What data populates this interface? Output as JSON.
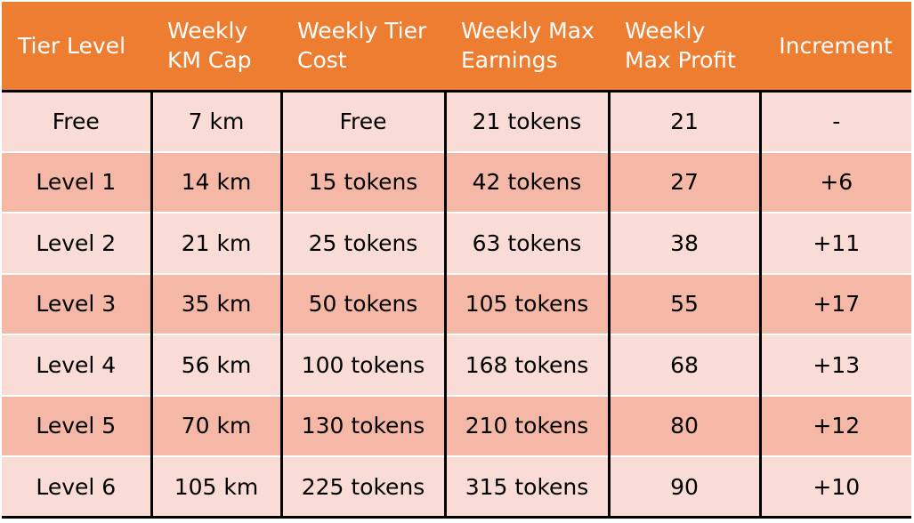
{
  "table": {
    "headers": [
      [
        "Tier Level"
      ],
      [
        "Weekly",
        "KM Cap"
      ],
      [
        "Weekly Tier",
        "Cost"
      ],
      [
        "Weekly Max",
        "Earnings"
      ],
      [
        "Weekly",
        "Max Profit"
      ],
      [
        "Increment"
      ]
    ],
    "rows": [
      [
        "Free",
        "7 km",
        "Free",
        "21 tokens",
        "21",
        "-"
      ],
      [
        "Level 1",
        "14 km",
        "15 tokens",
        "42 tokens",
        "27",
        "+6"
      ],
      [
        "Level 2",
        "21 km",
        "25 tokens",
        "63 tokens",
        "38",
        "+11"
      ],
      [
        "Level 3",
        "35 km",
        "50 tokens",
        "105 tokens",
        "55",
        "+17"
      ],
      [
        "Level 4",
        "56 km",
        "100 tokens",
        "168 tokens",
        "68",
        "+13"
      ],
      [
        "Level 5",
        "70 km",
        "130 tokens",
        "210 tokens",
        "80",
        "+12"
      ],
      [
        "Level 6",
        "105 km",
        "225 tokens",
        "315 tokens",
        "90",
        "+10"
      ]
    ]
  },
  "colors": {
    "header_bg": "#ED7D31",
    "header_text": "#FFFFFF",
    "row_light": "#F9DCD5",
    "row_dark": "#F5B8A6",
    "border": "#000000"
  }
}
